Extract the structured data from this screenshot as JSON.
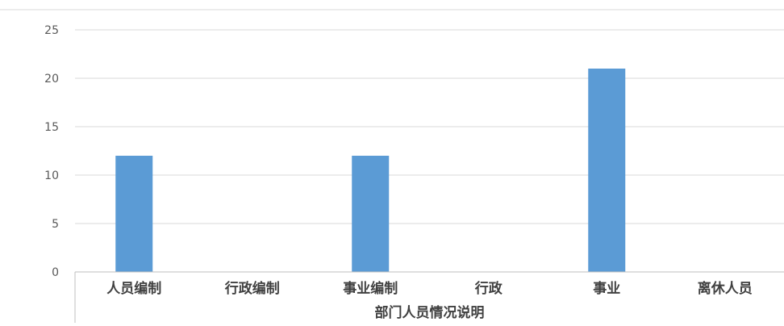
{
  "chart_data": {
    "type": "bar",
    "title": "",
    "xlabel": "部门人员情况说明",
    "ylabel": "",
    "categories": [
      "人员编制",
      "行政编制",
      "事业编制",
      "行政",
      "事业",
      "离休人员"
    ],
    "values": [
      12,
      0,
      12,
      0,
      21,
      0
    ],
    "ylim": [
      0,
      25
    ],
    "yticks": [
      0,
      5,
      10,
      15,
      20,
      25
    ],
    "grid": true,
    "legend": "none",
    "bar_color": "#5b9bd5"
  }
}
